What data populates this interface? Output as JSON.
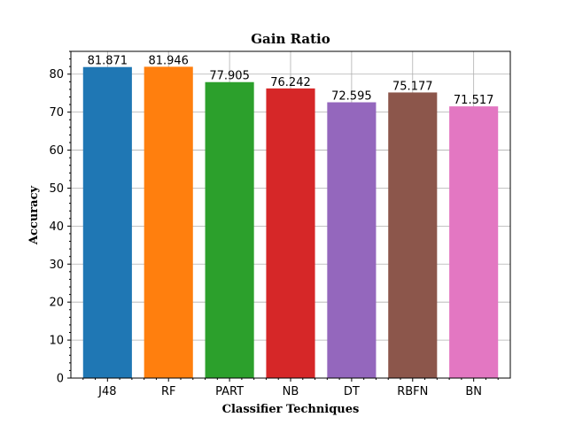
{
  "chart_data": {
    "type": "bar",
    "title": "Gain Ratio",
    "xlabel": "Classifier Techniques",
    "ylabel": "Accuracy",
    "categories": [
      "J48",
      "RF",
      "PART",
      "NB",
      "DT",
      "RBFN",
      "BN"
    ],
    "values": [
      81.871,
      81.946,
      77.905,
      76.242,
      72.595,
      75.177,
      71.517
    ],
    "data_labels": [
      "81.871",
      "81.946",
      "77.905",
      "76.242",
      "72.595",
      "75.177",
      "71.517"
    ],
    "colors": [
      "#1f77b4",
      "#ff7f0e",
      "#2ca02c",
      "#d62728",
      "#9467bd",
      "#8c564b",
      "#e377c2"
    ],
    "ylim": [
      0,
      86
    ],
    "yticks": [
      0,
      10,
      20,
      30,
      40,
      50,
      60,
      70,
      80
    ],
    "yminor_step": 2,
    "grid": true,
    "legend": "none"
  }
}
